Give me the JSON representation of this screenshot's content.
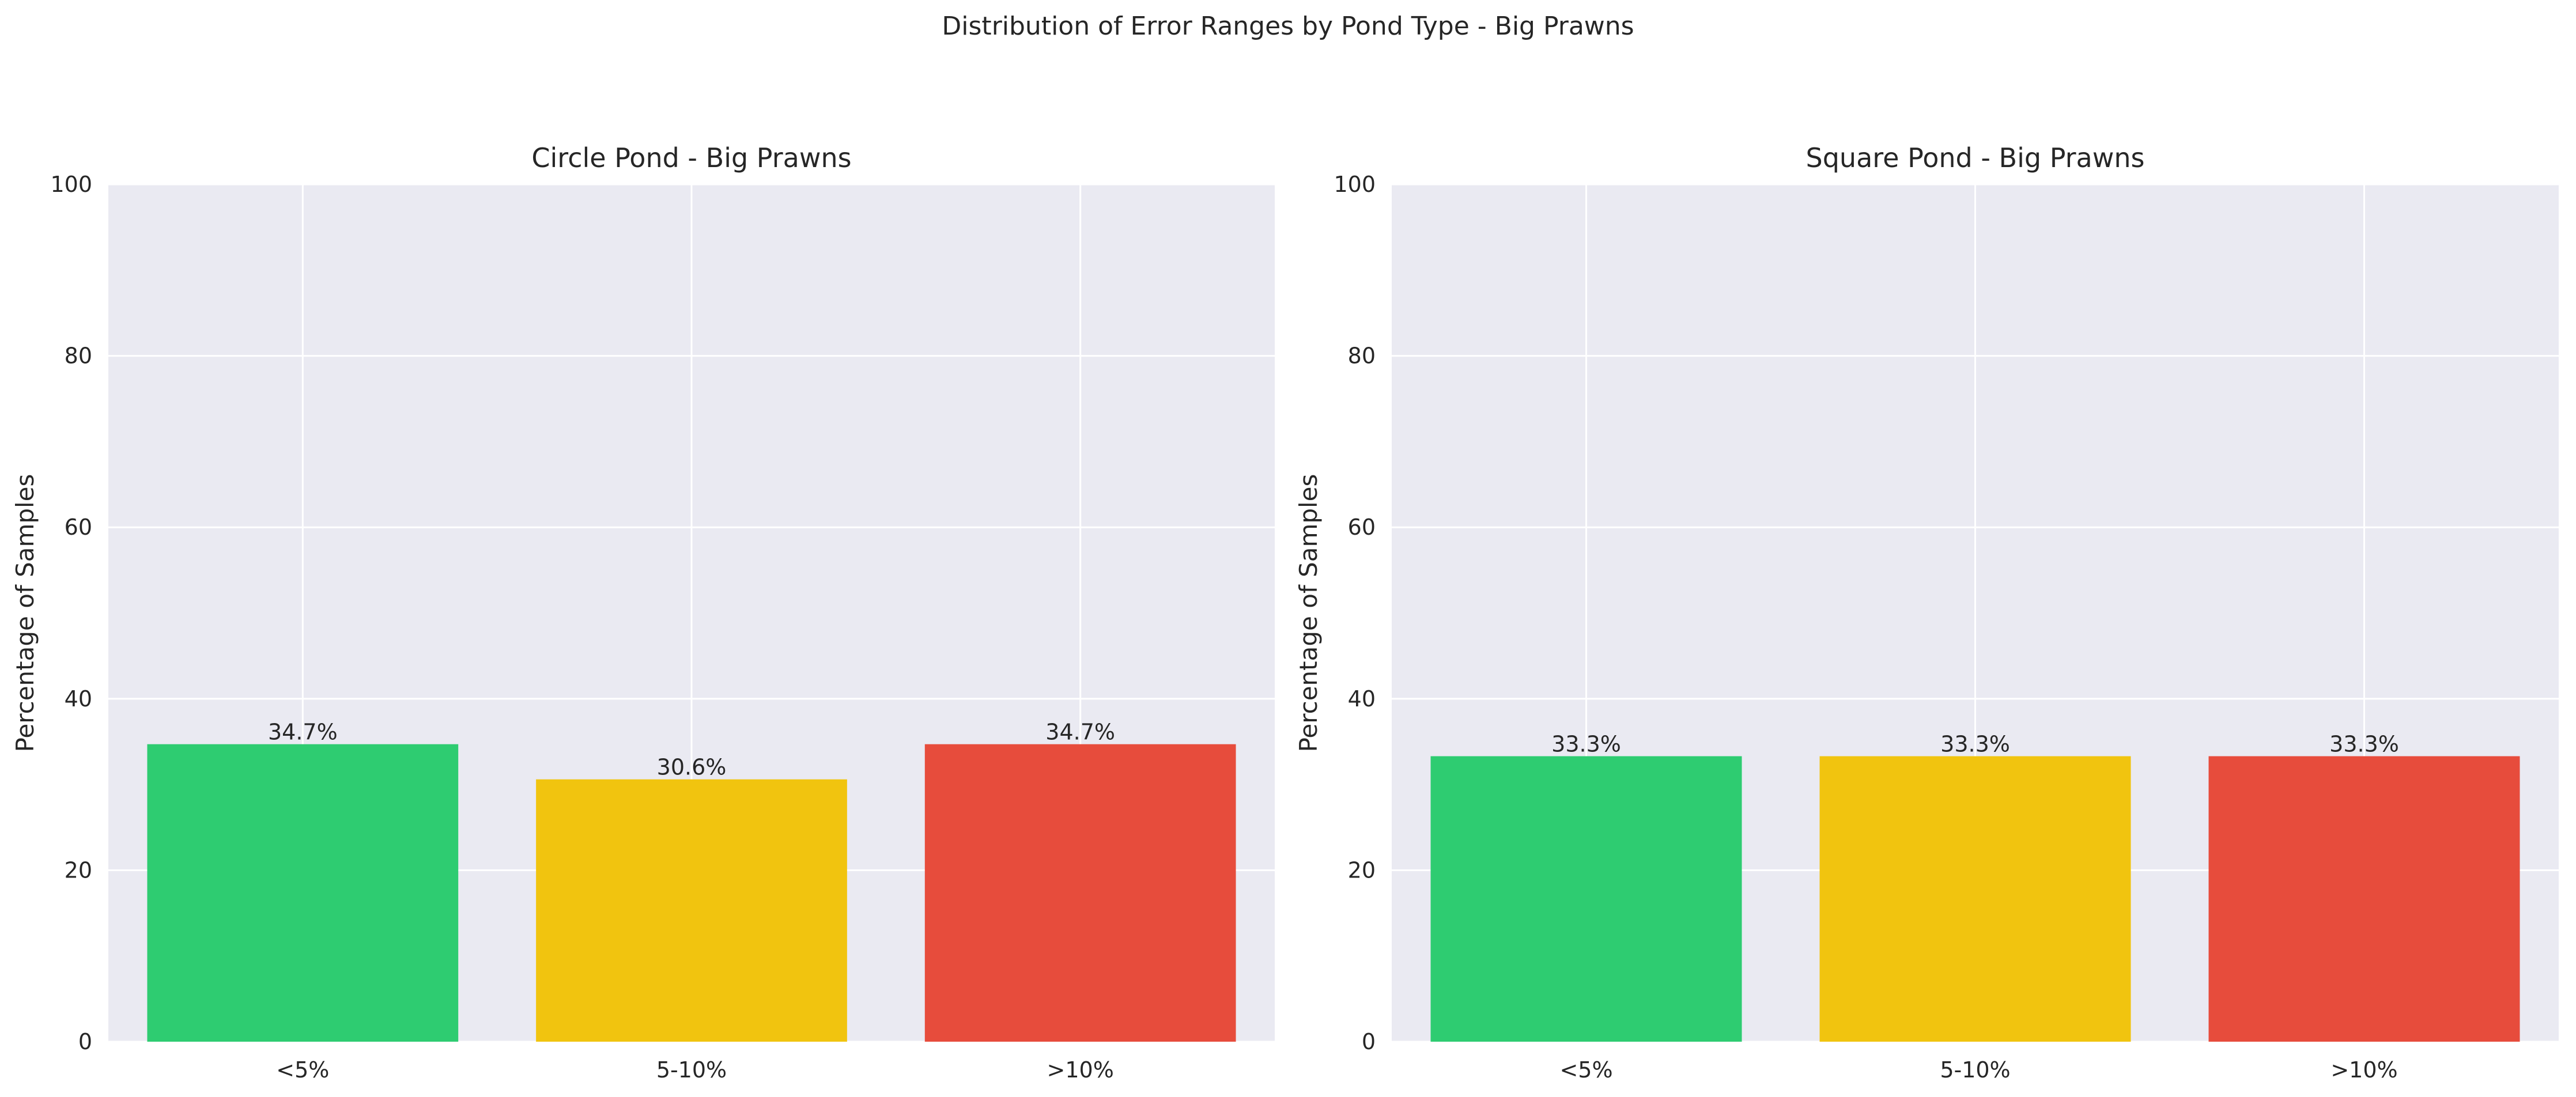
{
  "figure": {
    "suptitle": "Distribution of Error Ranges by Pond Type - Big Prawns"
  },
  "chart_data": [
    {
      "type": "bar",
      "title": "Circle Pond - Big Prawns",
      "xlabel": "",
      "ylabel": "Percentage of Samples",
      "ylim": [
        0,
        100
      ],
      "yticks": [
        0,
        20,
        40,
        60,
        80,
        100
      ],
      "categories": [
        "<5%",
        "5-10%",
        ">10%"
      ],
      "values": [
        34.7,
        30.6,
        34.7
      ],
      "bar_labels": [
        "34.7%",
        "30.6%",
        "34.7%"
      ],
      "colors": [
        "#2ecc71",
        "#f1c40f",
        "#e74c3c"
      ],
      "grid": true,
      "background": "#eaeaf2"
    },
    {
      "type": "bar",
      "title": "Square Pond - Big Prawns",
      "xlabel": "",
      "ylabel": "Percentage of Samples",
      "ylim": [
        0,
        100
      ],
      "yticks": [
        0,
        20,
        40,
        60,
        80,
        100
      ],
      "categories": [
        "<5%",
        "5-10%",
        ">10%"
      ],
      "values": [
        33.3,
        33.3,
        33.3
      ],
      "bar_labels": [
        "33.3%",
        "33.3%",
        "33.3%"
      ],
      "colors": [
        "#2ecc71",
        "#f1c40f",
        "#e74c3c"
      ],
      "grid": true,
      "background": "#eaeaf2"
    }
  ]
}
